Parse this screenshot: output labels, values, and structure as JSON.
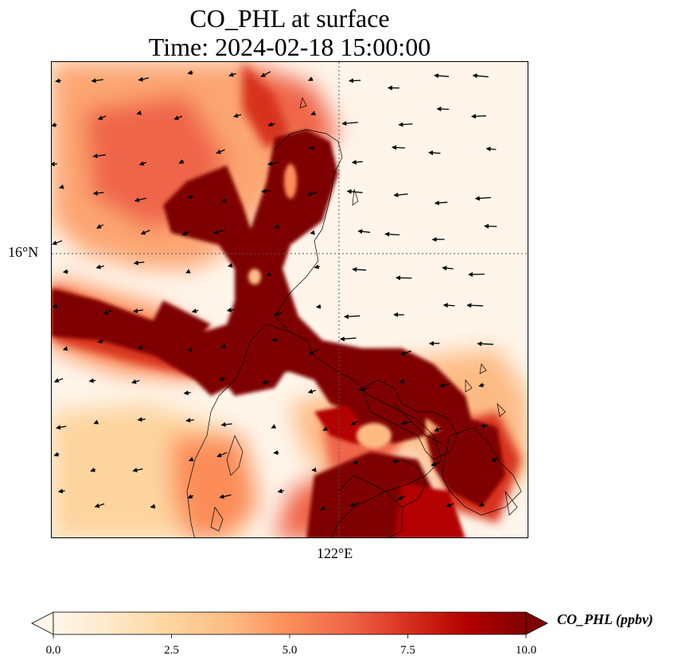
{
  "title": {
    "line1": "CO_PHL at surface",
    "line2": "Time: 2024-02-18 15:00:00"
  },
  "map": {
    "lat_gridline_label": "16°N",
    "lon_gridline_label": "122°E",
    "field": "CO_PHL",
    "wind_vectors_shown": true,
    "coastlines_shown": true
  },
  "colorbar": {
    "label": "CO_PHL (ppbv)",
    "min": 0.0,
    "max": 10.0,
    "ticks": [
      "0.0",
      "2.5",
      "5.0",
      "7.5",
      "10.0"
    ],
    "colormap": "OrRd",
    "extend": "both",
    "colors": [
      "#fff7ec",
      "#fee8c8",
      "#fdd49e",
      "#fdbb84",
      "#fc8d59",
      "#ef6548",
      "#d7301f",
      "#b30000",
      "#7f0000"
    ]
  }
}
